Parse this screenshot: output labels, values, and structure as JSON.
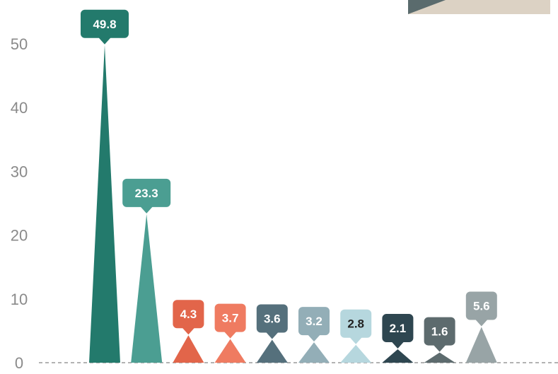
{
  "chart_data": {
    "type": "bar",
    "title": "",
    "xlabel": "",
    "ylabel": "",
    "ylim": [
      0,
      55
    ],
    "yticks": [
      "0",
      "10",
      "20",
      "30",
      "40",
      "50"
    ],
    "grid": false,
    "values": [
      49.8,
      23.3,
      4.3,
      3.7,
      3.6,
      3.2,
      2.8,
      2.1,
      1.6,
      5.6
    ],
    "data_labels": [
      "49.8",
      "23.3",
      "4.3",
      "3.7",
      "3.6",
      "3.2",
      "2.8",
      "2.1",
      "1.6",
      "5.6"
    ],
    "colors": [
      "#237a6c",
      "#4b9e92",
      "#e2654a",
      "#ef7b61",
      "#55707c",
      "#93aeb7",
      "#b6d7de",
      "#2e4650",
      "#5d6b6e",
      "#98a4a6"
    ],
    "label_text_colors": [
      "#ffffff",
      "#ffffff",
      "#ffffff",
      "#ffffff",
      "#ffffff",
      "#ffffff",
      "#222222",
      "#ffffff",
      "#ffffff",
      "#ffffff"
    ],
    "baseline_style": "dashed"
  },
  "legend_fragment": {
    "colors": [
      "#5a6b6d",
      "#dcd2c4"
    ]
  }
}
